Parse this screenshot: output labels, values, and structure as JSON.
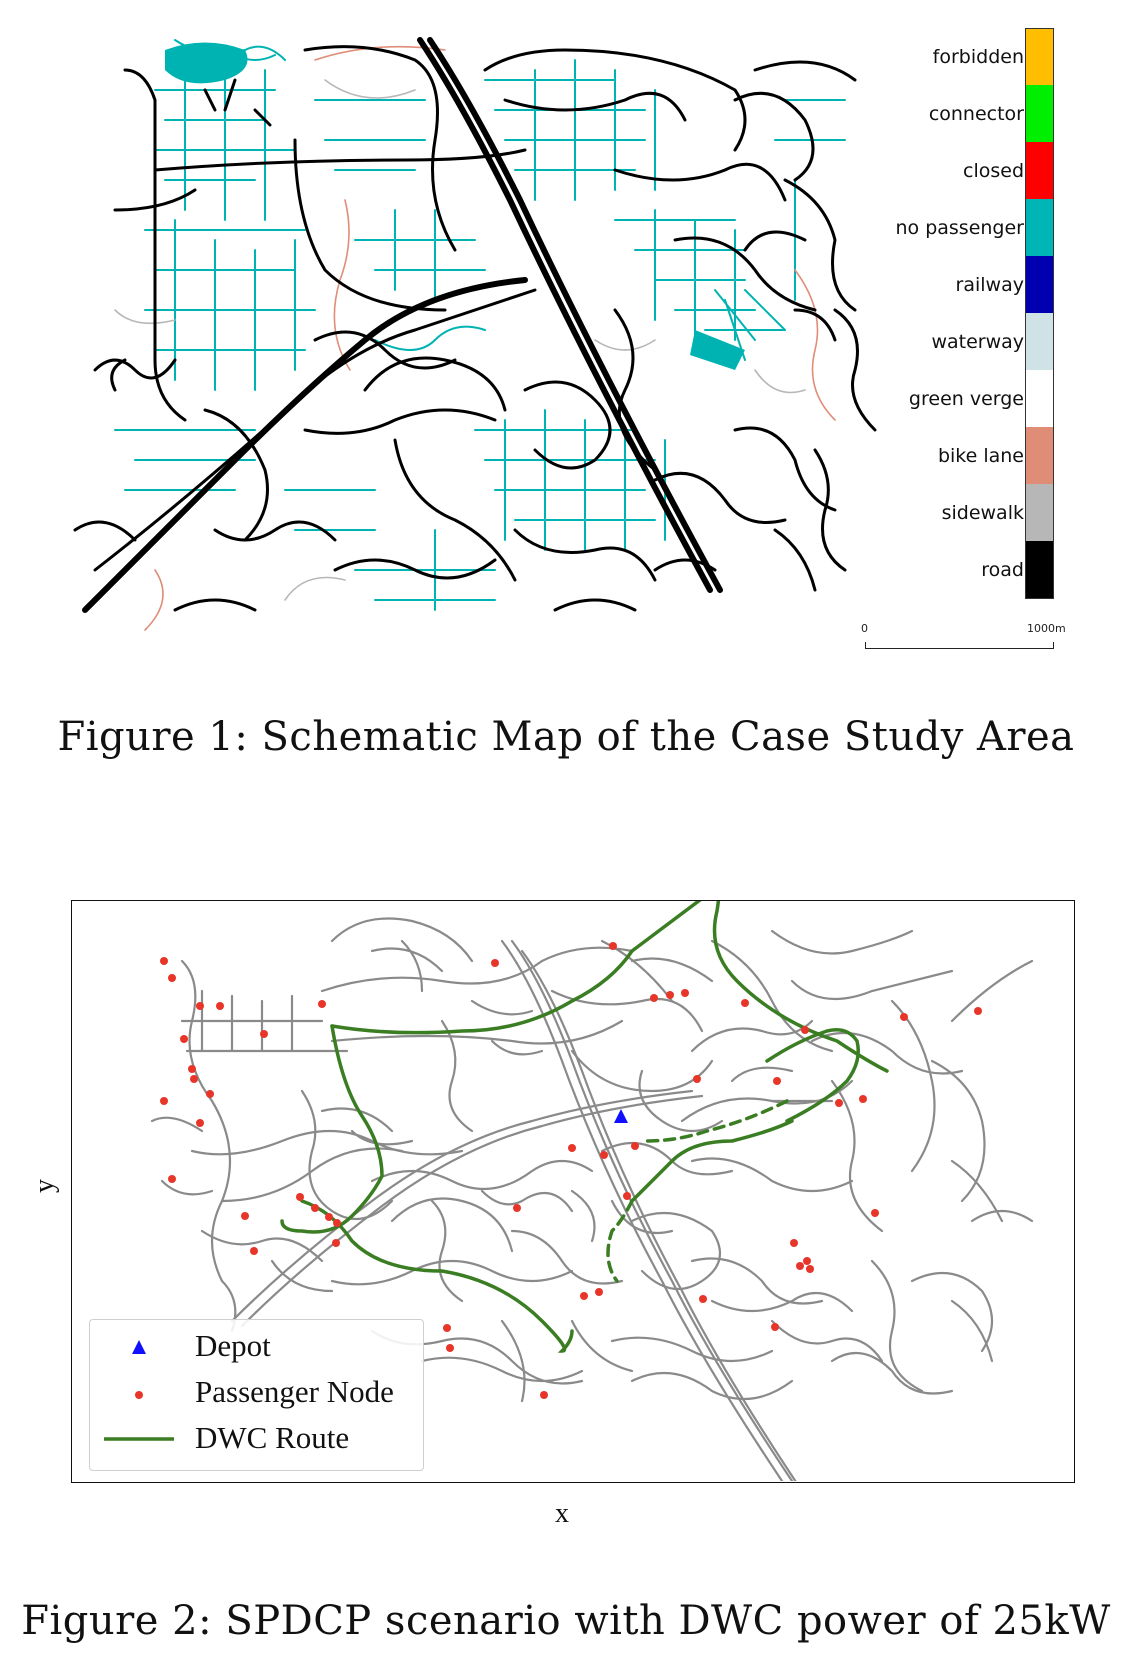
{
  "figure1": {
    "caption": "Figure 1: Schematic Map of the Case Study Area",
    "legend": [
      {
        "label": "forbidden",
        "color": "#ffbf00"
      },
      {
        "label": "connector",
        "color": "#00ee00"
      },
      {
        "label": "closed",
        "color": "#ff0000"
      },
      {
        "label": "no passenger",
        "color": "#00b5b5"
      },
      {
        "label": "railway",
        "color": "#0000b0"
      },
      {
        "label": "waterway",
        "color": "#cfe3e6"
      },
      {
        "label": "green verge",
        "color": "#ffffff"
      },
      {
        "label": "bike lane",
        "color": "#e08d78"
      },
      {
        "label": "sidewalk",
        "color": "#b7b7b7"
      },
      {
        "label": "road",
        "color": "#000000"
      }
    ],
    "scale": {
      "start": "0",
      "end": "1000m"
    }
  },
  "figure2": {
    "caption": "Figure 2: SPDCP scenario with DWC power of 25kW",
    "xlabel": "x",
    "ylabel": "y",
    "legend": {
      "depot": "Depot",
      "passenger": "Passenger Node",
      "route": "DWC Route"
    },
    "colors": {
      "depot": "#1010ff",
      "passenger": "#e8352a",
      "route": "#3a7d22",
      "network": "#8a8a8a"
    }
  }
}
